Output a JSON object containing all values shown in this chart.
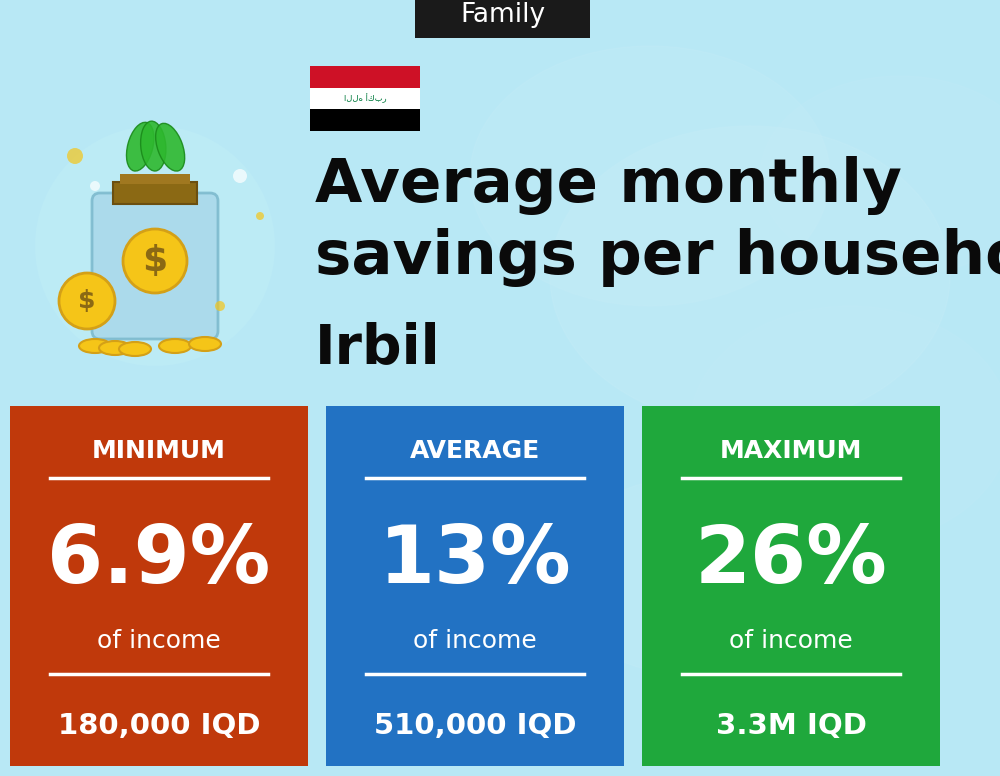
{
  "title_tag": "Family",
  "title_tag_bg": "#1a1a1a",
  "title_tag_fg": "#ffffff",
  "bg_color": "#a8dff0",
  "main_title_line1": "Average monthly",
  "main_title_line2": "savings per household in",
  "main_title_line3": "Irbil",
  "main_title_color": "#0a0a0a",
  "cards": [
    {
      "label": "MINIMUM",
      "percent": "6.9%",
      "sub": "of income",
      "amount": "180,000 IQD",
      "color": "#c0390b"
    },
    {
      "label": "AVERAGE",
      "percent": "13%",
      "sub": "of income",
      "amount": "510,000 IQD",
      "color": "#2272c3"
    },
    {
      "label": "MAXIMUM",
      "percent": "26%",
      "sub": "of income",
      "amount": "3.3M IQD",
      "color": "#1fa83c"
    }
  ],
  "card_text_color": "#ffffff",
  "fig_width": 10.0,
  "fig_height": 7.76,
  "dpi": 100
}
